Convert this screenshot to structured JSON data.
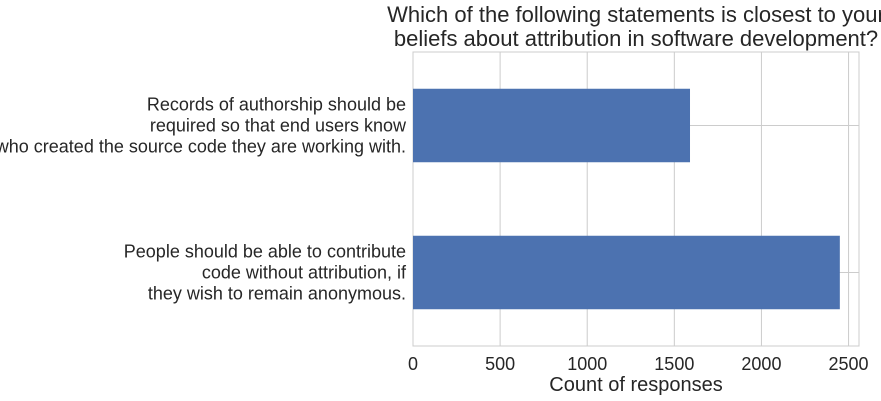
{
  "chart_data": {
    "type": "bar",
    "orientation": "horizontal",
    "title": "Which of the following statements is closest to your beliefs about attribution in software development?",
    "title_lines": [
      "Which of the following statements is closest to your",
      "beliefs about attribution in software development?"
    ],
    "categories": [
      "Records of authorship should be required so that end users know who created the source code they are working with.",
      "People should be able to contribute code without attribution, if they wish to remain anonymous."
    ],
    "category_lines": [
      [
        "Records of authorship should be",
        "required so that end users know",
        "who created the source code they are working with."
      ],
      [
        "People should be able to contribute",
        "code without attribution, if",
        "they wish to remain anonymous."
      ]
    ],
    "values": [
      1590,
      2450
    ],
    "xlabel": "Count of responses",
    "ylabel": "",
    "xlim": [
      0,
      2560
    ],
    "xticks": [
      0,
      500,
      1000,
      1500,
      2000,
      2500
    ],
    "grid": true,
    "bar_color": "#4c72b0",
    "grid_color": "#cccccc"
  }
}
